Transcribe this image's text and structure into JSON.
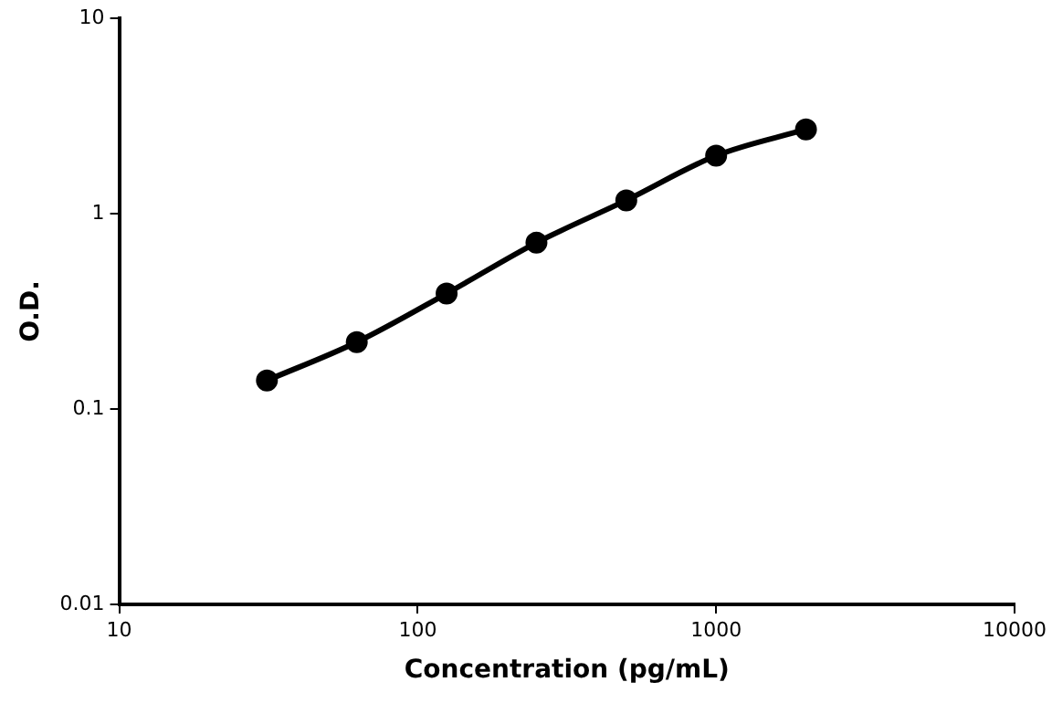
{
  "chart_data": {
    "type": "line",
    "xlabel": "Concentration (pg/mL)",
    "ylabel": "O.D.",
    "x": [
      31.25,
      62.5,
      125,
      250,
      500,
      1000,
      2000
    ],
    "series": [
      {
        "color": "#000000",
        "values": [
          0.14,
          0.22,
          0.39,
          0.71,
          1.17,
          1.98,
          2.7
        ]
      }
    ],
    "log": "xy",
    "xlim": [
      10,
      10000
    ],
    "ylim": [
      0.01,
      10
    ],
    "xticks": [
      10,
      100,
      1000,
      10000
    ],
    "yticks": [
      0.01,
      0.1,
      1,
      10
    ],
    "grid": false,
    "legend": false,
    "marker": "circle",
    "line_style": "solid"
  }
}
